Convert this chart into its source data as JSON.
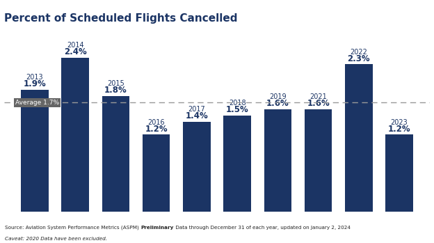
{
  "title": "Percent of Scheduled Flights Cancelled",
  "years": [
    "2013",
    "2014",
    "2015",
    "2016",
    "2017",
    "2018",
    "2019",
    "2021",
    "2022",
    "2023"
  ],
  "values": [
    1.9,
    2.4,
    1.8,
    1.2,
    1.4,
    1.5,
    1.6,
    1.6,
    2.3,
    1.2
  ],
  "average": 1.7,
  "average_label": "Average 1.7%",
  "bar_color": "#1B3464",
  "average_line_color": "#999999",
  "title_color": "#1B3464",
  "label_color": "#1B3464",
  "year_color": "#1B3464",
  "avg_box_color": "#666666",
  "avg_text_color": "#ffffff",
  "source_normal1": "Source: Aviation System Performance Metrics (ASPM) ",
  "source_bold": "Preliminary",
  "source_normal2": " Data through December 31 of each year, updated on January 2, 2024",
  "caveat_text": "Caveat: 2020 Data have been excluded.",
  "background_color": "#ffffff",
  "ylim": [
    0,
    2.85
  ],
  "figsize": [
    6.24,
    3.49
  ],
  "dpi": 100
}
